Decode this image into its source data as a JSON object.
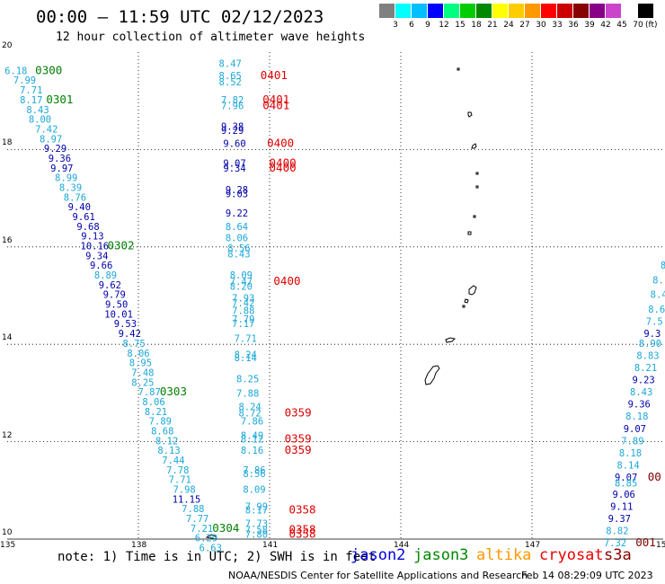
{
  "header": {
    "title": "00:00 — 11:59 UTC 02/12/2023",
    "subtitle": "12 hour collection of altimeter wave heights"
  },
  "legend": {
    "colors": [
      "#808080",
      "#00ffff",
      "#00bfff",
      "#0000ff",
      "#00ff80",
      "#00cc00",
      "#008800",
      "#ffff00",
      "#ffcc00",
      "#ff9900",
      "#ff0000",
      "#cc0000",
      "#880000",
      "#880088",
      "#cc44cc",
      "#ffffff",
      "#000000"
    ],
    "labels": [
      "3",
      "6",
      "9",
      "12",
      "15",
      "18",
      "21",
      "24",
      "27",
      "30",
      "33",
      "36",
      "39",
      "42",
      "45",
      "70"
    ],
    "unit": "(ft)"
  },
  "axes": {
    "lon_labels": [
      "135",
      "138",
      "141",
      "144",
      "147",
      "150"
    ],
    "lat_labels": [
      "20",
      "18",
      "16",
      "14",
      "12",
      "10"
    ]
  },
  "map_colors": {
    "light": "#1ba7d8",
    "navy": "#0000aa",
    "green": "#007f00",
    "red": "#dd0000",
    "darkred": "#800000"
  },
  "tracks": [
    {
      "type": "value",
      "color": "light",
      "lon": 135.2,
      "lat": 19.55,
      "text": "6.18"
    },
    {
      "type": "value",
      "color": "light",
      "lon": 135.4,
      "lat": 19.35,
      "text": "7.99"
    },
    {
      "type": "value",
      "color": "light",
      "lon": 135.55,
      "lat": 19.15,
      "text": "7.71"
    },
    {
      "type": "value",
      "color": "light",
      "lon": 135.55,
      "lat": 18.95,
      "text": "8.17"
    },
    {
      "type": "value",
      "color": "light",
      "lon": 135.7,
      "lat": 18.75,
      "text": "8.43"
    },
    {
      "type": "value",
      "color": "light",
      "lon": 135.75,
      "lat": 18.55,
      "text": "8.00"
    },
    {
      "type": "value",
      "color": "light",
      "lon": 135.9,
      "lat": 18.35,
      "text": "7.42"
    },
    {
      "type": "value",
      "color": "light",
      "lon": 136.0,
      "lat": 18.15,
      "text": "8.97"
    },
    {
      "type": "value",
      "color": "navy",
      "lon": 136.1,
      "lat": 17.95,
      "text": "9.29"
    },
    {
      "type": "value",
      "color": "navy",
      "lon": 136.2,
      "lat": 17.75,
      "text": "9.36"
    },
    {
      "type": "value",
      "color": "navy",
      "lon": 136.25,
      "lat": 17.55,
      "text": "9.97"
    },
    {
      "type": "value",
      "color": "light",
      "lon": 136.35,
      "lat": 17.35,
      "text": "8.99"
    },
    {
      "type": "value",
      "color": "light",
      "lon": 136.45,
      "lat": 17.15,
      "text": "8.39"
    },
    {
      "type": "value",
      "color": "light",
      "lon": 136.55,
      "lat": 16.95,
      "text": "8.76"
    },
    {
      "type": "value",
      "color": "navy",
      "lon": 136.65,
      "lat": 16.75,
      "text": "9.40"
    },
    {
      "type": "value",
      "color": "navy",
      "lon": 136.75,
      "lat": 16.55,
      "text": "9.61"
    },
    {
      "type": "value",
      "color": "navy",
      "lon": 136.85,
      "lat": 16.35,
      "text": "9.68"
    },
    {
      "type": "value",
      "color": "navy",
      "lon": 136.95,
      "lat": 16.15,
      "text": "9.13"
    },
    {
      "type": "value",
      "color": "navy",
      "lon": 137.0,
      "lat": 15.95,
      "text": "10.16"
    },
    {
      "type": "value",
      "color": "navy",
      "lon": 137.05,
      "lat": 15.75,
      "text": "9.34"
    },
    {
      "type": "value",
      "color": "navy",
      "lon": 137.15,
      "lat": 15.55,
      "text": "9.66"
    },
    {
      "type": "value",
      "color": "light",
      "lon": 137.25,
      "lat": 15.35,
      "text": "8.89"
    },
    {
      "type": "value",
      "color": "navy",
      "lon": 137.35,
      "lat": 15.15,
      "text": "9.62"
    },
    {
      "type": "value",
      "color": "navy",
      "lon": 137.45,
      "lat": 14.95,
      "text": "9.79"
    },
    {
      "type": "value",
      "color": "navy",
      "lon": 137.5,
      "lat": 14.75,
      "text": "9.50"
    },
    {
      "type": "value",
      "color": "navy",
      "lon": 137.55,
      "lat": 14.55,
      "text": "10.01"
    },
    {
      "type": "value",
      "color": "navy",
      "lon": 137.7,
      "lat": 14.35,
      "text": "9.53"
    },
    {
      "type": "value",
      "color": "navy",
      "lon": 137.8,
      "lat": 14.15,
      "text": "9.42"
    },
    {
      "type": "value",
      "color": "light",
      "lon": 137.9,
      "lat": 13.95,
      "text": "8.75"
    },
    {
      "type": "value",
      "color": "light",
      "lon": 138.0,
      "lat": 13.75,
      "text": "8.06"
    },
    {
      "type": "value",
      "color": "light",
      "lon": 138.05,
      "lat": 13.55,
      "text": "8.95"
    },
    {
      "type": "value",
      "color": "light",
      "lon": 138.1,
      "lat": 13.35,
      "text": "7.48"
    },
    {
      "type": "value",
      "color": "light",
      "lon": 138.1,
      "lat": 13.15,
      "text": "8.25"
    },
    {
      "type": "value",
      "color": "light",
      "lon": 138.25,
      "lat": 12.95,
      "text": "7.87"
    },
    {
      "type": "value",
      "color": "light",
      "lon": 138.35,
      "lat": 12.75,
      "text": "8.06"
    },
    {
      "type": "value",
      "color": "light",
      "lon": 138.4,
      "lat": 12.55,
      "text": "8.21"
    },
    {
      "type": "value",
      "color": "light",
      "lon": 138.5,
      "lat": 12.35,
      "text": "7.89"
    },
    {
      "type": "value",
      "color": "light",
      "lon": 138.55,
      "lat": 12.15,
      "text": "8.68"
    },
    {
      "type": "value",
      "color": "light",
      "lon": 138.65,
      "lat": 11.95,
      "text": "8.12"
    },
    {
      "type": "value",
      "color": "light",
      "lon": 138.7,
      "lat": 11.75,
      "text": "8.13"
    },
    {
      "type": "value",
      "color": "light",
      "lon": 138.8,
      "lat": 11.55,
      "text": "7.44"
    },
    {
      "type": "value",
      "color": "light",
      "lon": 138.9,
      "lat": 11.35,
      "text": "7.78"
    },
    {
      "type": "value",
      "color": "light",
      "lon": 138.95,
      "lat": 11.15,
      "text": "7.71"
    },
    {
      "type": "value",
      "color": "light",
      "lon": 139.05,
      "lat": 10.95,
      "text": "7.98"
    },
    {
      "type": "value",
      "color": "navy",
      "lon": 139.1,
      "lat": 10.75,
      "text": "11.15"
    },
    {
      "type": "value",
      "color": "light",
      "lon": 139.25,
      "lat": 10.55,
      "text": "7.88"
    },
    {
      "type": "value",
      "color": "light",
      "lon": 139.35,
      "lat": 10.35,
      "text": "7.77"
    },
    {
      "type": "value",
      "color": "light",
      "lon": 139.45,
      "lat": 10.15,
      "text": "7.21"
    },
    {
      "type": "value",
      "color": "light",
      "lon": 139.55,
      "lat": 9.95,
      "text": "6.29"
    },
    {
      "type": "value",
      "color": "light",
      "lon": 139.65,
      "lat": 9.75,
      "text": "6.63"
    },
    {
      "type": "label",
      "color": "green",
      "lon": 135.95,
      "lat": 19.55,
      "text": "0300"
    },
    {
      "type": "label",
      "color": "green",
      "lon": 136.2,
      "lat": 18.95,
      "text": "0301"
    },
    {
      "type": "label",
      "color": "green",
      "lon": 137.6,
      "lat": 15.95,
      "text": "0302"
    },
    {
      "type": "label",
      "color": "green",
      "lon": 138.8,
      "lat": 12.95,
      "text": "0303"
    },
    {
      "type": "label",
      "color": "green",
      "lon": 140.0,
      "lat": 10.15,
      "text": "0304"
    },
    {
      "type": "value",
      "color": "light",
      "lon": 140.1,
      "lat": 19.7,
      "text": "8.47"
    },
    {
      "type": "value",
      "color": "light",
      "lon": 140.1,
      "lat": 19.45,
      "text": "8.65"
    },
    {
      "type": "value",
      "color": "light",
      "lon": 140.1,
      "lat": 19.32,
      "text": "8.52"
    },
    {
      "type": "value",
      "color": "light",
      "lon": 140.15,
      "lat": 18.95,
      "text": "7.82"
    },
    {
      "type": "value",
      "color": "light",
      "lon": 140.15,
      "lat": 18.83,
      "text": "7.96"
    },
    {
      "type": "value",
      "color": "navy",
      "lon": 140.15,
      "lat": 18.4,
      "text": "9.38"
    },
    {
      "type": "value",
      "color": "navy",
      "lon": 140.15,
      "lat": 18.32,
      "text": "9.29"
    },
    {
      "type": "value",
      "color": "navy",
      "lon": 140.2,
      "lat": 18.05,
      "text": "9.60"
    },
    {
      "type": "value",
      "color": "navy",
      "lon": 140.2,
      "lat": 17.65,
      "text": "9.07"
    },
    {
      "type": "value",
      "color": "navy",
      "lon": 140.2,
      "lat": 17.55,
      "text": "9.34"
    },
    {
      "type": "value",
      "color": "navy",
      "lon": 140.25,
      "lat": 17.1,
      "text": "9.28"
    },
    {
      "type": "value",
      "color": "navy",
      "lon": 140.25,
      "lat": 17.02,
      "text": "9.03"
    },
    {
      "type": "value",
      "color": "navy",
      "lon": 140.25,
      "lat": 16.62,
      "text": "9.22"
    },
    {
      "type": "value",
      "color": "light",
      "lon": 140.25,
      "lat": 16.35,
      "text": "8.64"
    },
    {
      "type": "value",
      "color": "light",
      "lon": 140.25,
      "lat": 16.12,
      "text": "8.06"
    },
    {
      "type": "value",
      "color": "light",
      "lon": 140.3,
      "lat": 15.9,
      "text": "8.56"
    },
    {
      "type": "value",
      "color": "light",
      "lon": 140.3,
      "lat": 15.78,
      "text": "8.43"
    },
    {
      "type": "value",
      "color": "light",
      "lon": 140.35,
      "lat": 15.35,
      "text": "8.09"
    },
    {
      "type": "value",
      "color": "light",
      "lon": 140.35,
      "lat": 15.22,
      "text": "7.47"
    },
    {
      "type": "value",
      "color": "light",
      "lon": 140.35,
      "lat": 15.12,
      "text": "8.20"
    },
    {
      "type": "value",
      "color": "light",
      "lon": 140.4,
      "lat": 14.88,
      "text": "7.93"
    },
    {
      "type": "value",
      "color": "light",
      "lon": 140.4,
      "lat": 14.78,
      "text": "7.42"
    },
    {
      "type": "value",
      "color": "light",
      "lon": 140.4,
      "lat": 14.62,
      "text": "7.88"
    },
    {
      "type": "value",
      "color": "light",
      "lon": 140.4,
      "lat": 14.45,
      "text": "7.79"
    },
    {
      "type": "value",
      "color": "light",
      "lon": 140.4,
      "lat": 14.35,
      "text": "7.17"
    },
    {
      "type": "value",
      "color": "light",
      "lon": 140.45,
      "lat": 14.05,
      "text": "7.71"
    },
    {
      "type": "value",
      "color": "light",
      "lon": 140.45,
      "lat": 13.72,
      "text": "8.24"
    },
    {
      "type": "value",
      "color": "light",
      "lon": 140.45,
      "lat": 13.65,
      "text": "8.14"
    },
    {
      "type": "value",
      "color": "light",
      "lon": 140.5,
      "lat": 13.22,
      "text": "8.25"
    },
    {
      "type": "value",
      "color": "light",
      "lon": 140.5,
      "lat": 12.92,
      "text": "7.88"
    },
    {
      "type": "value",
      "color": "light",
      "lon": 140.55,
      "lat": 12.65,
      "text": "8.24"
    },
    {
      "type": "value",
      "color": "light",
      "lon": 140.55,
      "lat": 12.52,
      "text": "8.72"
    },
    {
      "type": "value",
      "color": "light",
      "lon": 140.6,
      "lat": 12.35,
      "text": "7.86"
    },
    {
      "type": "value",
      "color": "light",
      "lon": 140.6,
      "lat": 12.06,
      "text": "8.49"
    },
    {
      "type": "value",
      "color": "light",
      "lon": 140.6,
      "lat": 11.98,
      "text": "8.12"
    },
    {
      "type": "value",
      "color": "light",
      "lon": 140.6,
      "lat": 11.75,
      "text": "8.16"
    },
    {
      "type": "value",
      "color": "light",
      "lon": 140.65,
      "lat": 11.35,
      "text": "7.86"
    },
    {
      "type": "value",
      "color": "light",
      "lon": 140.65,
      "lat": 11.27,
      "text": "8.56"
    },
    {
      "type": "value",
      "color": "light",
      "lon": 140.65,
      "lat": 10.95,
      "text": "8.09"
    },
    {
      "type": "value",
      "color": "light",
      "lon": 140.7,
      "lat": 10.6,
      "text": "7.99"
    },
    {
      "type": "value",
      "color": "light",
      "lon": 140.7,
      "lat": 10.53,
      "text": "8.17"
    },
    {
      "type": "value",
      "color": "light",
      "lon": 140.7,
      "lat": 10.25,
      "text": "7.73"
    },
    {
      "type": "value",
      "color": "light",
      "lon": 140.7,
      "lat": 10.12,
      "text": "7.58"
    },
    {
      "type": "value",
      "color": "light",
      "lon": 140.7,
      "lat": 10.03,
      "text": "7.80"
    },
    {
      "type": "label",
      "color": "red",
      "lon": 141.1,
      "lat": 19.45,
      "text": "0401"
    },
    {
      "type": "label",
      "color": "red",
      "lon": 141.15,
      "lat": 18.95,
      "text": "0401"
    },
    {
      "type": "label",
      "color": "red",
      "lon": 141.15,
      "lat": 18.83,
      "text": "0401"
    },
    {
      "type": "label",
      "color": "red",
      "lon": 141.25,
      "lat": 18.05,
      "text": "0400"
    },
    {
      "type": "label",
      "color": "red",
      "lon": 141.3,
      "lat": 17.65,
      "text": "0400"
    },
    {
      "type": "label",
      "color": "red",
      "lon": 141.3,
      "lat": 17.55,
      "text": "0400"
    },
    {
      "type": "label",
      "color": "red",
      "lon": 141.4,
      "lat": 15.22,
      "text": "0400"
    },
    {
      "type": "label",
      "color": "red",
      "lon": 141.65,
      "lat": 12.52,
      "text": "0359"
    },
    {
      "type": "label",
      "color": "red",
      "lon": 141.65,
      "lat": 11.98,
      "text": "0359"
    },
    {
      "type": "label",
      "color": "red",
      "lon": 141.65,
      "lat": 11.75,
      "text": "0359"
    },
    {
      "type": "label",
      "color": "red",
      "lon": 141.75,
      "lat": 10.53,
      "text": "0358"
    },
    {
      "type": "label",
      "color": "red",
      "lon": 141.75,
      "lat": 10.12,
      "text": "0358"
    },
    {
      "type": "label",
      "color": "red",
      "lon": 141.75,
      "lat": 10.03,
      "text": "0358"
    },
    {
      "type": "value",
      "color": "light",
      "lon": 150.0,
      "lat": 15.55,
      "text": "8"
    },
    {
      "type": "value",
      "color": "light",
      "lon": 149.95,
      "lat": 15.25,
      "text": "8.1"
    },
    {
      "type": "value",
      "color": "light",
      "lon": 149.9,
      "lat": 14.95,
      "text": "8.4"
    },
    {
      "type": "value",
      "color": "light",
      "lon": 149.85,
      "lat": 14.65,
      "text": "8.6"
    },
    {
      "type": "value",
      "color": "light",
      "lon": 149.8,
      "lat": 14.4,
      "text": "7.5"
    },
    {
      "type": "value",
      "color": "navy",
      "lon": 149.75,
      "lat": 14.15,
      "text": "9.3"
    },
    {
      "type": "value",
      "color": "light",
      "lon": 149.7,
      "lat": 13.95,
      "text": "8.90"
    },
    {
      "type": "value",
      "color": "light",
      "lon": 149.65,
      "lat": 13.7,
      "text": "8.83"
    },
    {
      "type": "value",
      "color": "light",
      "lon": 149.6,
      "lat": 13.45,
      "text": "8.21"
    },
    {
      "type": "value",
      "color": "navy",
      "lon": 149.55,
      "lat": 13.2,
      "text": "9.23"
    },
    {
      "type": "value",
      "color": "light",
      "lon": 149.5,
      "lat": 12.95,
      "text": "8.43"
    },
    {
      "type": "value",
      "color": "navy",
      "lon": 149.45,
      "lat": 12.7,
      "text": "9.36"
    },
    {
      "type": "value",
      "color": "light",
      "lon": 149.4,
      "lat": 12.45,
      "text": "8.18"
    },
    {
      "type": "value",
      "color": "navy",
      "lon": 149.35,
      "lat": 12.2,
      "text": "9.07"
    },
    {
      "type": "value",
      "color": "light",
      "lon": 149.3,
      "lat": 11.95,
      "text": "7.89"
    },
    {
      "type": "value",
      "color": "light",
      "lon": 149.25,
      "lat": 11.7,
      "text": "8.18"
    },
    {
      "type": "value",
      "color": "light",
      "lon": 149.2,
      "lat": 11.45,
      "text": "8.14"
    },
    {
      "type": "value",
      "color": "navy",
      "lon": 149.15,
      "lat": 11.2,
      "text": "9.07"
    },
    {
      "type": "value",
      "color": "light",
      "lon": 149.15,
      "lat": 11.08,
      "text": "8.85"
    },
    {
      "type": "value",
      "color": "navy",
      "lon": 149.1,
      "lat": 10.85,
      "text": "9.06"
    },
    {
      "type": "value",
      "color": "navy",
      "lon": 149.05,
      "lat": 10.6,
      "text": "9.11"
    },
    {
      "type": "value",
      "color": "navy",
      "lon": 149.0,
      "lat": 10.35,
      "text": "9.37"
    },
    {
      "type": "value",
      "color": "light",
      "lon": 148.95,
      "lat": 10.1,
      "text": "8.82"
    },
    {
      "type": "value",
      "color": "light",
      "lon": 148.9,
      "lat": 9.85,
      "text": "7.32"
    },
    {
      "type": "label",
      "color": "darkred",
      "lon": 149.8,
      "lat": 11.2,
      "text": "00"
    },
    {
      "type": "label",
      "color": "darkred",
      "lon": 149.6,
      "lat": 9.85,
      "text": "001"
    }
  ],
  "note": "note: 1) Time is in UTC; 2) SWH is in feet",
  "satellites": [
    {
      "name": "jason2",
      "color": "#0000dd"
    },
    {
      "name": "jason3",
      "color": "#008800"
    },
    {
      "name": "altika",
      "color": "#ff9900"
    },
    {
      "name": "cryosat",
      "color": "#ee0000"
    },
    {
      "name": "s3a",
      "color": "#880000"
    }
  ],
  "footer": {
    "left": "NOAA/NESDIS Center for Satellite Applications and Research",
    "right": "Feb 14 08:29:09 UTC 2023"
  }
}
